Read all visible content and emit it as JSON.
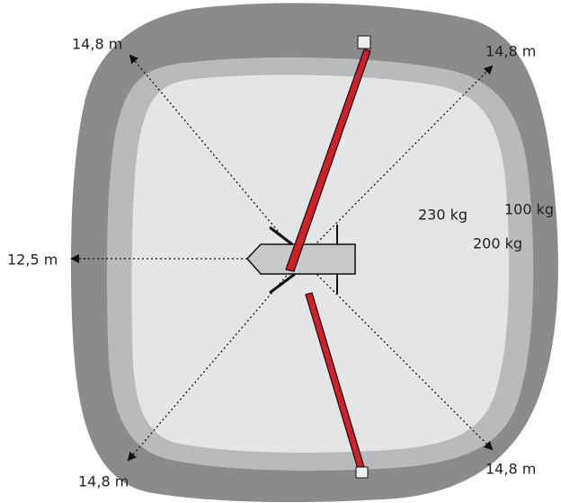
{
  "reach_labels": {
    "top_left": "14,8 m",
    "top_right": "14,8 m",
    "left": "12,5 m",
    "bottom_left": "14,8 m",
    "bottom_right": "14,8 m"
  },
  "load_zones": {
    "inner": "230 kg",
    "middle": "200 kg",
    "outer": "100 kg"
  }
}
